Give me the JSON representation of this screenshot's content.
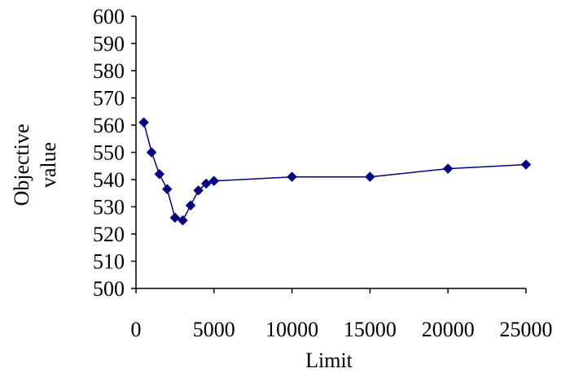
{
  "chart_data": {
    "type": "line",
    "title": "",
    "xlabel": "Limit",
    "ylabel_lines": [
      "Objective",
      "value"
    ],
    "xlim": [
      0,
      25000
    ],
    "ylim": [
      500,
      600
    ],
    "x_ticks": [
      0,
      5000,
      10000,
      15000,
      20000,
      25000
    ],
    "x_tick_labels": [
      "0",
      "5000",
      "10000",
      "15000",
      "20000",
      "25000"
    ],
    "y_ticks": [
      500,
      510,
      520,
      530,
      540,
      550,
      560,
      570,
      580,
      590,
      600
    ],
    "y_tick_labels": [
      "500",
      "510",
      "520",
      "530",
      "540",
      "550",
      "560",
      "570",
      "580",
      "590",
      "600"
    ],
    "grid": false,
    "legend": "none",
    "series": [
      {
        "color": "#000080",
        "marker": "diamond",
        "x": [
          500,
          1000,
          1500,
          2000,
          2500,
          3000,
          3500,
          4000,
          4500,
          5000,
          10000,
          15000,
          20000,
          25000
        ],
        "y": [
          561,
          550,
          542,
          536.5,
          526,
          525,
          530.5,
          536,
          538.5,
          539.5,
          541,
          541,
          544,
          545.5
        ]
      }
    ]
  }
}
